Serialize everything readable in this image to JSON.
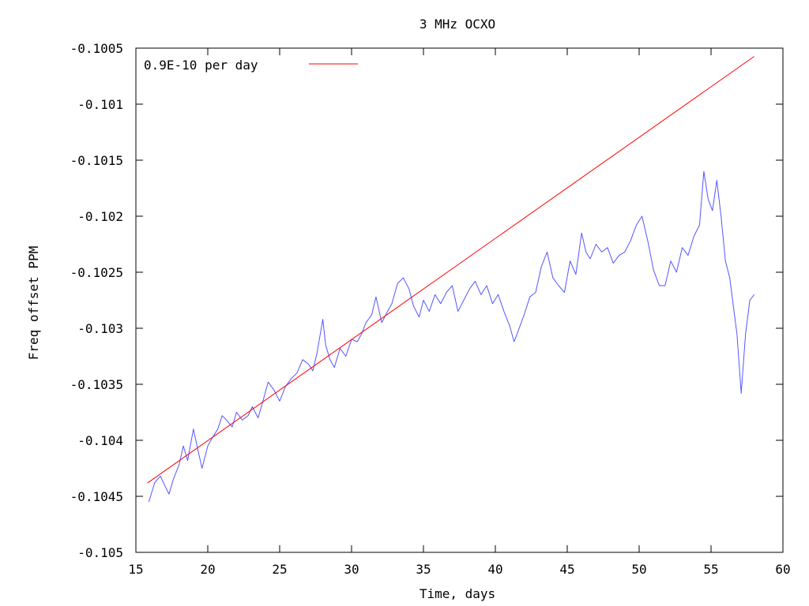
{
  "chart_data": {
    "type": "line",
    "title": "3 MHz OCXO",
    "xlabel": "Time, days",
    "ylabel": "Freq offset PPM",
    "xlim": [
      15,
      60
    ],
    "ylim": [
      -0.105,
      -0.1005
    ],
    "x_ticks": [
      15,
      20,
      25,
      30,
      35,
      40,
      45,
      50,
      55,
      60
    ],
    "x_tick_labels": [
      "15",
      "20",
      "25",
      "30",
      "35",
      "40",
      "45",
      "50",
      "55",
      "60"
    ],
    "y_ticks": [
      -0.105,
      -0.1045,
      -0.104,
      -0.1035,
      -0.103,
      -0.1025,
      -0.102,
      -0.1015,
      -0.101,
      -0.1005
    ],
    "y_tick_labels": [
      "-0.105",
      "-0.1045",
      "-0.104",
      "-0.1035",
      "-0.103",
      "-0.1025",
      "-0.102",
      "-0.1015",
      "-0.101",
      "-0.1005"
    ],
    "grid": false,
    "legend_position": "top-left",
    "series": [
      {
        "name": "",
        "color": "#5555ff",
        "x": [
          15.9,
          16.3,
          16.7,
          17.0,
          17.3,
          17.6,
          18.0,
          18.3,
          18.6,
          19.0,
          19.3,
          19.6,
          20.0,
          20.3,
          20.7,
          21.0,
          21.3,
          21.7,
          22.0,
          22.4,
          22.8,
          23.1,
          23.5,
          23.9,
          24.2,
          24.6,
          25.0,
          25.4,
          25.8,
          26.2,
          26.6,
          27.0,
          27.3,
          27.6,
          28.0,
          28.2,
          28.5,
          28.8,
          29.2,
          29.6,
          30.0,
          30.4,
          30.7,
          31.0,
          31.4,
          31.7,
          32.1,
          32.5,
          32.8,
          33.2,
          33.6,
          34.0,
          34.3,
          34.7,
          35.0,
          35.4,
          35.8,
          36.2,
          36.6,
          37.0,
          37.4,
          37.8,
          38.2,
          38.6,
          39.0,
          39.4,
          39.8,
          40.2,
          40.6,
          41.0,
          41.3,
          41.6,
          42.0,
          42.4,
          42.8,
          43.2,
          43.6,
          44.0,
          44.4,
          44.8,
          45.2,
          45.6,
          46.0,
          46.3,
          46.6,
          47.0,
          47.4,
          47.8,
          48.2,
          48.6,
          49.0,
          49.4,
          49.8,
          50.2,
          50.6,
          51.0,
          51.4,
          51.8,
          52.2,
          52.6,
          53.0,
          53.4,
          53.8,
          54.2,
          54.5,
          54.8,
          55.1,
          55.4,
          55.7,
          56.0,
          56.3,
          56.6,
          56.8,
          57.1,
          57.4,
          57.7,
          58.0
        ],
        "y": [
          -0.10455,
          -0.10438,
          -0.10432,
          -0.1044,
          -0.10448,
          -0.10435,
          -0.10422,
          -0.10405,
          -0.10418,
          -0.1039,
          -0.10408,
          -0.10425,
          -0.10405,
          -0.10398,
          -0.1039,
          -0.10378,
          -0.10382,
          -0.10388,
          -0.10375,
          -0.10382,
          -0.10378,
          -0.1037,
          -0.1038,
          -0.10362,
          -0.10348,
          -0.10355,
          -0.10365,
          -0.10352,
          -0.10345,
          -0.1034,
          -0.10328,
          -0.10332,
          -0.10338,
          -0.10322,
          -0.10292,
          -0.10315,
          -0.10328,
          -0.10335,
          -0.10318,
          -0.10325,
          -0.1031,
          -0.10312,
          -0.10305,
          -0.10295,
          -0.10288,
          -0.10272,
          -0.10295,
          -0.10285,
          -0.10278,
          -0.1026,
          -0.10255,
          -0.10265,
          -0.1028,
          -0.1029,
          -0.10275,
          -0.10285,
          -0.1027,
          -0.10278,
          -0.10268,
          -0.10262,
          -0.10285,
          -0.10275,
          -0.10265,
          -0.10258,
          -0.1027,
          -0.10262,
          -0.10278,
          -0.1027,
          -0.10285,
          -0.10298,
          -0.10312,
          -0.10302,
          -0.10288,
          -0.10272,
          -0.10268,
          -0.10245,
          -0.10232,
          -0.10255,
          -0.10262,
          -0.10268,
          -0.1024,
          -0.10252,
          -0.10215,
          -0.10232,
          -0.10238,
          -0.10225,
          -0.10232,
          -0.10228,
          -0.10242,
          -0.10235,
          -0.10232,
          -0.10222,
          -0.10208,
          -0.102,
          -0.10222,
          -0.10248,
          -0.10262,
          -0.10262,
          -0.1024,
          -0.1025,
          -0.10228,
          -0.10235,
          -0.10218,
          -0.10208,
          -0.1016,
          -0.10185,
          -0.10195,
          -0.10168,
          -0.102,
          -0.1024,
          -0.10255,
          -0.10285,
          -0.10305,
          -0.10358,
          -0.10305,
          -0.10275,
          -0.1027
        ]
      },
      {
        "name": "0.9E-10 per day",
        "color": "#ff0000",
        "x": [
          15.8,
          58.0
        ],
        "y": [
          -0.104382,
          -0.100574
        ]
      }
    ]
  }
}
